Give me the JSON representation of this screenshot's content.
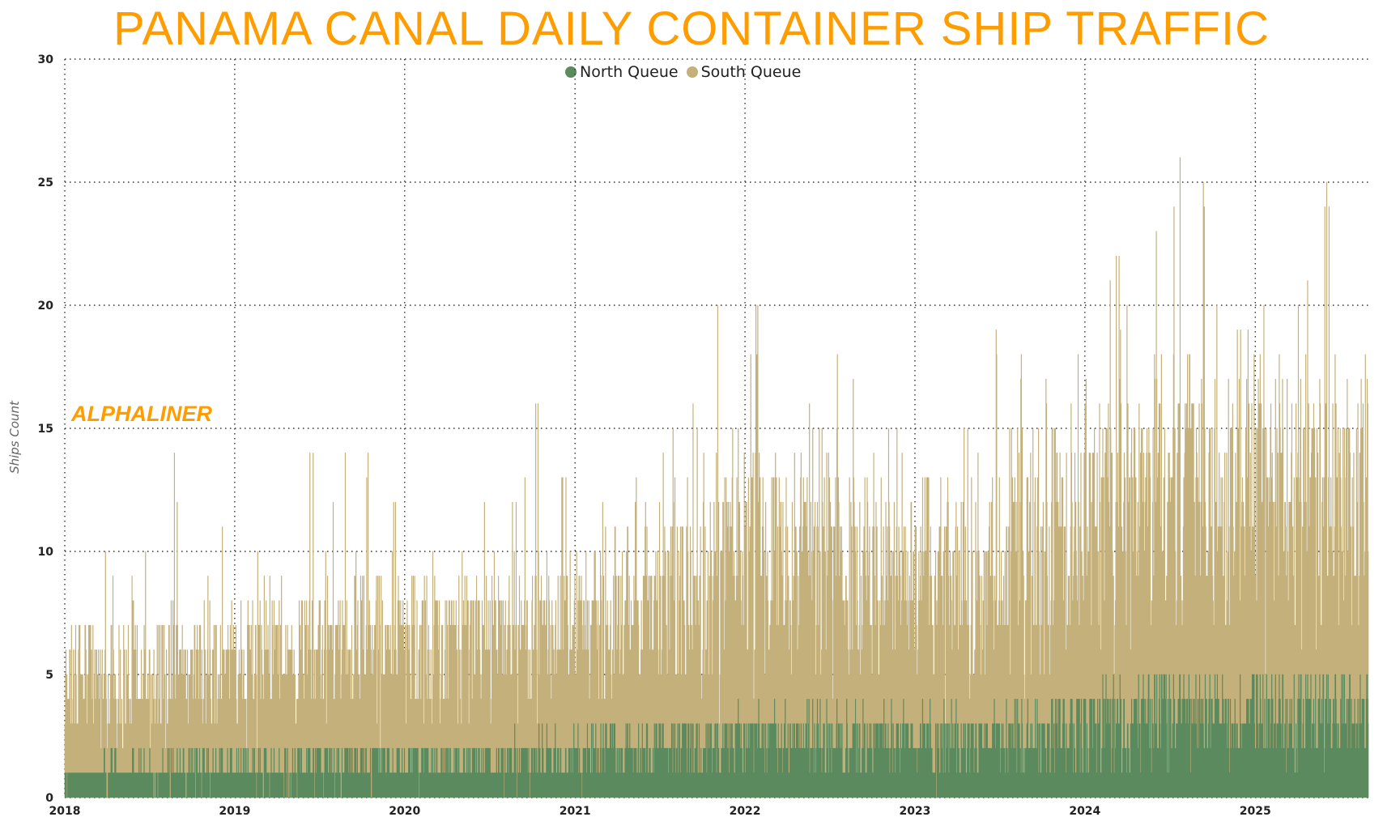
{
  "chart_data": {
    "type": "area",
    "title": "PANAMA CANAL DAILY CONTAINER SHIP TRAFFIC",
    "xlabel": "",
    "ylabel": "Ships Count",
    "stacked": true,
    "ylim": [
      0,
      30
    ],
    "yticks": [
      0,
      5,
      10,
      15,
      20,
      25,
      30
    ],
    "xticks": [
      "2018",
      "2019",
      "2020",
      "2021",
      "2022",
      "2023",
      "2024",
      "2025"
    ],
    "xrange": [
      "2018-01-01",
      "2025-09-01"
    ],
    "grid": true,
    "legend": "top-center",
    "watermark": "ALPHALINER",
    "resolution": "monthly summary of daily values (2018-01 to 2025-08)",
    "series": [
      {
        "name": "North Queue",
        "color": "#5b8a5e",
        "monthly_avg": [
          0.8,
          0.8,
          0.9,
          0.9,
          0.9,
          0.9,
          0.9,
          1.0,
          1.0,
          1.0,
          1.0,
          1.0,
          1.0,
          1.0,
          1.0,
          1.0,
          1.1,
          1.1,
          1.1,
          1.1,
          1.1,
          1.2,
          1.2,
          1.2,
          1.2,
          1.2,
          1.2,
          1.3,
          1.3,
          1.3,
          1.3,
          1.4,
          1.4,
          1.4,
          1.5,
          1.5,
          1.5,
          1.5,
          1.6,
          1.6,
          1.6,
          1.7,
          1.7,
          1.8,
          1.8,
          1.9,
          1.9,
          2.0,
          2.0,
          2.0,
          2.0,
          2.0,
          2.0,
          2.1,
          2.1,
          2.1,
          2.1,
          2.0,
          2.0,
          2.0,
          2.0,
          2.0,
          2.0,
          1.9,
          1.9,
          2.0,
          2.0,
          2.1,
          2.1,
          2.2,
          2.3,
          2.4,
          2.6,
          2.7,
          2.8,
          2.8,
          2.8,
          2.9,
          2.9,
          2.9,
          2.9,
          2.8,
          2.8,
          2.8,
          2.8,
          2.8,
          2.8,
          2.8,
          2.8,
          2.9,
          2.9,
          2.9
        ]
      },
      {
        "name": "South Queue",
        "color": "#c4b07a",
        "monthly_avg": [
          3.4,
          3.5,
          3.5,
          3.5,
          3.6,
          3.5,
          3.5,
          3.6,
          3.6,
          3.6,
          3.7,
          3.8,
          3.8,
          3.9,
          3.9,
          4.0,
          4.0,
          4.0,
          4.1,
          4.1,
          4.2,
          4.3,
          4.3,
          4.3,
          4.3,
          4.3,
          4.2,
          4.2,
          4.4,
          4.4,
          4.5,
          4.6,
          4.7,
          4.8,
          4.9,
          5.0,
          5.0,
          5.0,
          5.2,
          5.3,
          5.3,
          5.4,
          5.5,
          5.6,
          5.8,
          6.0,
          6.2,
          6.3,
          6.5,
          6.5,
          6.5,
          6.5,
          6.4,
          6.5,
          6.6,
          6.6,
          6.5,
          6.3,
          6.2,
          6.0,
          5.8,
          5.8,
          5.9,
          6.0,
          6.0,
          6.1,
          6.3,
          6.5,
          6.7,
          6.8,
          7.0,
          7.2,
          7.5,
          7.8,
          8.0,
          8.0,
          8.1,
          8.2,
          8.3,
          8.4,
          8.3,
          8.2,
          8.1,
          8.0,
          8.0,
          8.1,
          8.2,
          8.2,
          8.1,
          8.0,
          8.0,
          7.9
        ]
      }
    ],
    "monthly_peak_total": [
      8,
      13,
      13,
      11,
      10,
      11,
      10,
      14,
      10,
      12,
      9,
      11,
      11,
      12,
      11,
      11,
      9,
      14,
      12,
      14,
      13,
      16,
      12,
      12,
      12,
      12,
      10,
      11,
      11,
      13,
      11,
      12,
      13,
      17,
      12,
      13,
      14,
      13,
      13,
      15,
      13,
      14,
      17,
      13,
      16,
      17,
      21,
      16,
      21,
      15,
      17,
      17,
      16,
      15,
      18,
      20,
      17,
      15,
      15,
      15,
      13,
      15,
      14,
      15,
      15,
      19,
      15,
      18,
      18,
      18,
      20,
      18,
      20,
      21,
      22,
      18,
      18,
      23,
      26,
      23,
      27,
      20,
      19,
      22,
      20,
      23,
      26,
      22,
      24,
      26,
      18,
      20
    ]
  }
}
